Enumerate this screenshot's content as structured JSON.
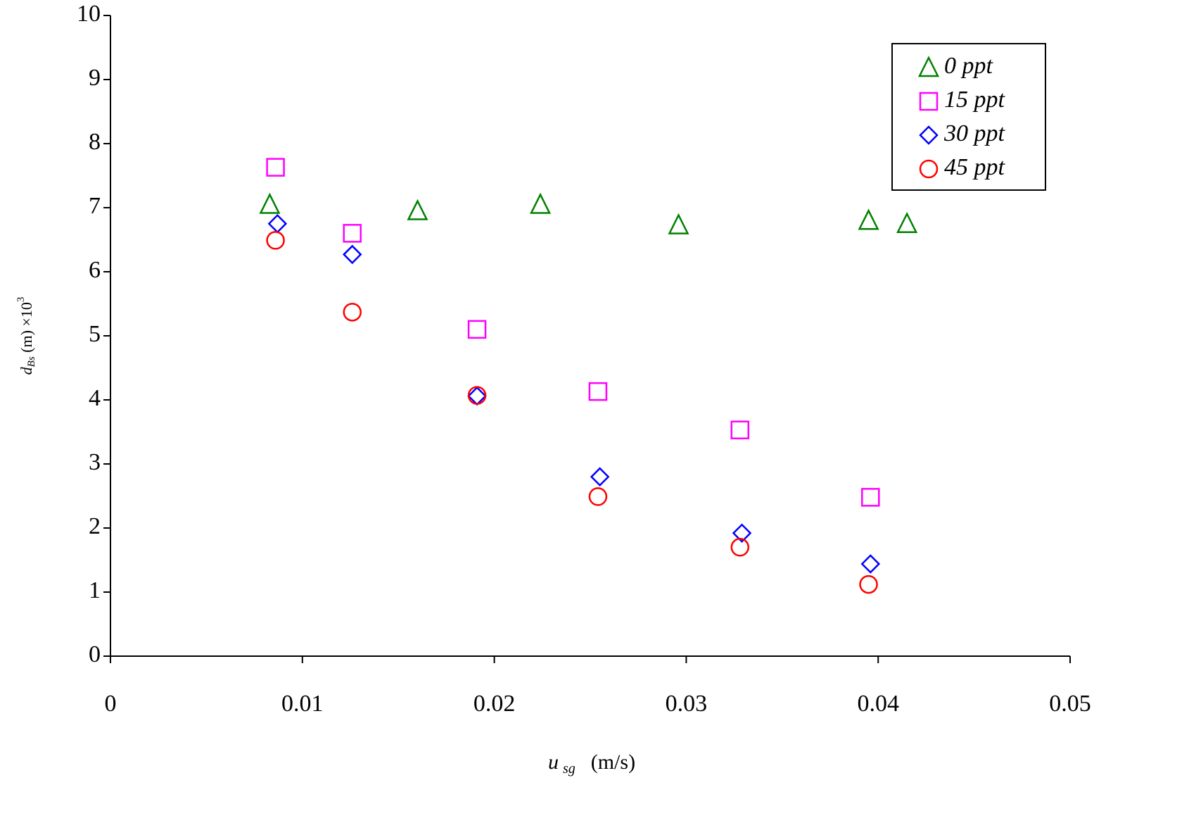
{
  "chart_data": {
    "type": "scatter",
    "x_label": {
      "main": "u",
      "sub": "sg",
      "rest": "(m/s)"
    },
    "y_label": {
      "main": "d",
      "sub": "Bs",
      "rest": " (m) ×10",
      "sup": "3"
    },
    "xlim": [
      0,
      0.05
    ],
    "xticks": [
      0,
      0.01,
      0.02,
      0.03,
      0.04,
      0.05
    ],
    "ylim": [
      0,
      10
    ],
    "yticks": [
      0,
      1,
      2,
      3,
      4,
      5,
      6,
      7,
      8,
      9,
      10
    ],
    "legend": "top-right",
    "series": [
      {
        "name": "0 ppt",
        "color": "#008000",
        "marker": "triangle",
        "x": [
          0.0083,
          0.016,
          0.0224,
          0.0296,
          0.0395,
          0.0415
        ],
        "values": [
          7.05,
          6.95,
          7.05,
          6.73,
          6.8,
          6.75
        ]
      },
      {
        "name": "15 ppt",
        "color": "#ff00ff",
        "marker": "square",
        "x": [
          0.0086,
          0.0126,
          0.0191,
          0.0254,
          0.0328,
          0.0396
        ],
        "values": [
          7.63,
          6.6,
          5.1,
          4.13,
          3.53,
          2.48
        ]
      },
      {
        "name": "30 ppt",
        "color": "#0000ff",
        "marker": "diamond",
        "x": [
          0.0087,
          0.0126,
          0.0191,
          0.0255,
          0.0329,
          0.0396
        ],
        "values": [
          6.75,
          6.27,
          4.06,
          2.8,
          1.92,
          1.44
        ]
      },
      {
        "name": "45 ppt",
        "color": "#ff0000",
        "marker": "circle",
        "x": [
          0.0086,
          0.0126,
          0.0191,
          0.0254,
          0.0328,
          0.0395
        ],
        "values": [
          6.49,
          5.37,
          4.07,
          2.49,
          1.7,
          1.12
        ]
      }
    ]
  }
}
